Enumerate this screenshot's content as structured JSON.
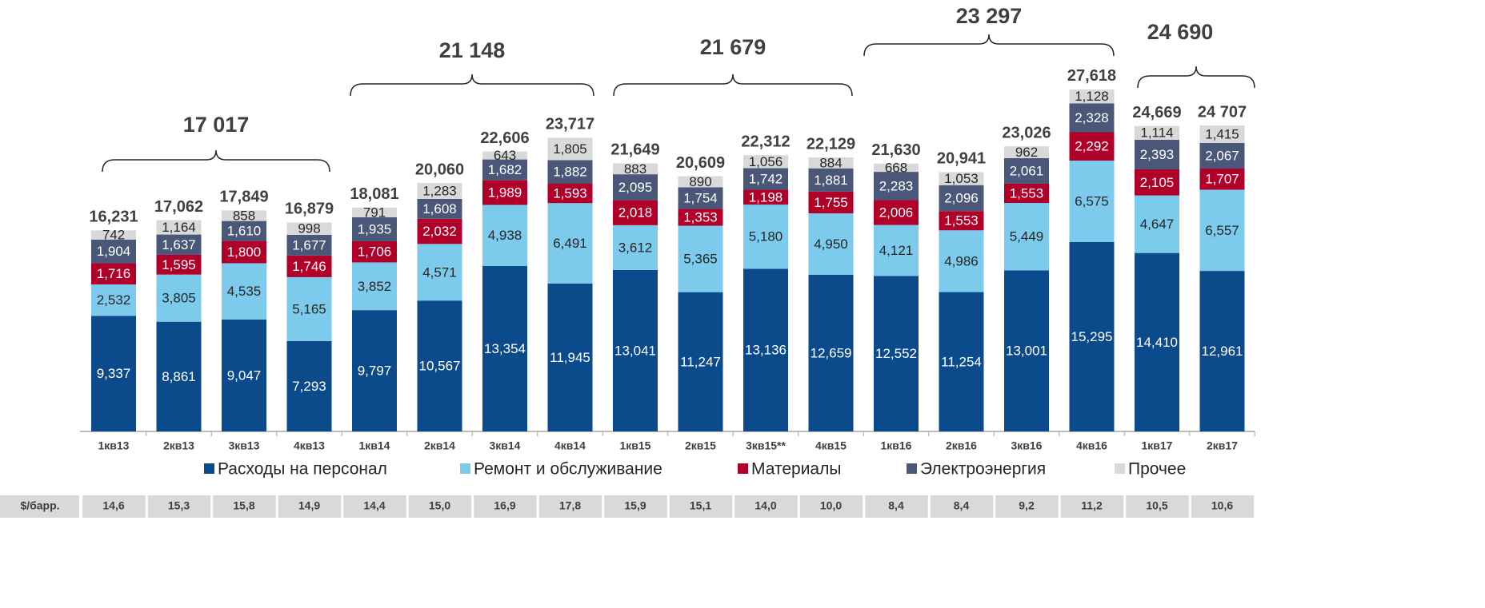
{
  "chart_data": {
    "type": "stacked_bar",
    "categories": [
      "1кв13",
      "2кв13",
      "3кв13",
      "4кв13",
      "1кв14",
      "2кв14",
      "3кв14",
      "4кв14",
      "1кв15",
      "2кв15",
      "3кв15**",
      "4кв15",
      "1кв16",
      "2кв16",
      "3кв16",
      "4кв16",
      "1кв17",
      "2кв17"
    ],
    "ylim": [
      0,
      28000
    ],
    "series": [
      {
        "name": "Расходы на персонал",
        "color": "#0b4a8b",
        "label_color": "#ffffff",
        "values": [
          9337,
          8861,
          9047,
          7293,
          9797,
          10567,
          13354,
          11945,
          13041,
          11247,
          13136,
          12659,
          12552,
          11254,
          13001,
          15295,
          14410,
          12961
        ],
        "value_labels": [
          "9,337",
          "8,861",
          "9,047",
          "7,293",
          "9,797",
          "10,567",
          "13,354",
          "11,945",
          "13,041",
          "11,247",
          "13,136",
          "12,659",
          "12,552",
          "11,254",
          "13,001",
          "15,295",
          "14,410",
          "12,961"
        ]
      },
      {
        "name": "Ремонт и обслуживание",
        "color": "#7ccbec",
        "label_color": "#262626",
        "values": [
          2532,
          3805,
          4535,
          5165,
          3852,
          4571,
          4938,
          6491,
          3612,
          5365,
          5180,
          4950,
          4121,
          4986,
          5449,
          6575,
          4647,
          6557
        ],
        "value_labels": [
          "2,532",
          "3,805",
          "4,535",
          "5,165",
          "3,852",
          "4,571",
          "4,938",
          "6,491",
          "3,612",
          "5,365",
          "5,180",
          "4,950",
          "4,121",
          "4,986",
          "5,449",
          "6,575",
          "4,647",
          "6,557"
        ]
      },
      {
        "name": "Материалы",
        "color": "#b0002a",
        "label_color": "#ffffff",
        "values": [
          1716,
          1595,
          1800,
          1746,
          1706,
          2032,
          1989,
          1593,
          2018,
          1353,
          1198,
          1755,
          2006,
          1553,
          1553,
          2292,
          2105,
          1707
        ],
        "value_labels": [
          "1,716",
          "1,595",
          "1,800",
          "1,746",
          "1,706",
          "2,032",
          "1,989",
          "1,593",
          "2,018",
          "1,353",
          "1,198",
          "1,755",
          "2,006",
          "1,553",
          "1,553",
          "2,292",
          "2,105",
          "1,707"
        ]
      },
      {
        "name": "Электроэнергия",
        "color": "#4a5778",
        "label_color": "#ffffff",
        "values": [
          1904,
          1637,
          1610,
          1677,
          1935,
          1608,
          1682,
          1882,
          2095,
          1754,
          1742,
          1881,
          2283,
          2096,
          2061,
          2328,
          2393,
          2067
        ],
        "value_labels": [
          "1,904",
          "1,637",
          "1,610",
          "1,677",
          "1,935",
          "1,608",
          "1,682",
          "1,882",
          "2,095",
          "1,754",
          "1,742",
          "1,881",
          "2,283",
          "2,096",
          "2,061",
          "2,328",
          "2,393",
          "2,067"
        ]
      },
      {
        "name": "Прочее",
        "color": "#d9d9d9",
        "label_color": "#262626",
        "values": [
          742,
          1164,
          858,
          998,
          791,
          1283,
          643,
          1805,
          883,
          890,
          1056,
          884,
          668,
          1053,
          962,
          1128,
          1114,
          1415
        ],
        "value_labels": [
          "742",
          "1,164",
          "858",
          "998",
          "791",
          "1,283",
          "643",
          "1,805",
          "883",
          "890",
          "1,056",
          "884",
          "668",
          "1,053",
          "962",
          "1,128",
          "1,114",
          "1,415"
        ]
      }
    ],
    "totals": [
      16231,
      17062,
      17849,
      16879,
      18081,
      20060,
      22606,
      23717,
      21649,
      20609,
      22312,
      22129,
      21630,
      20941,
      23026,
      27618,
      24669,
      24707
    ],
    "total_labels": [
      "16,231",
      "17,062",
      "17,849",
      "16,879",
      "18,081",
      "20,060",
      "22,606",
      "23,717",
      "21,649",
      "20,609",
      "22,312",
      "22,129",
      "21,630",
      "20,941",
      "23,026",
      "27,618",
      "24,669",
      "24 707"
    ],
    "annotations": [
      {
        "value": 17017,
        "label": "17 017"
      },
      {
        "value": 21148,
        "label": "21 148"
      },
      {
        "value": 21679,
        "label": "21 679"
      },
      {
        "value": 23297,
        "label": "23 297"
      },
      {
        "value": 24690,
        "label": "24 690"
      }
    ],
    "legend": "bottom"
  },
  "table": {
    "label": "$/барр.",
    "values": [
      "14,6",
      "15,3",
      "15,8",
      "14,9",
      "14,4",
      "15,0",
      "16,9",
      "17,8",
      "15,9",
      "15,1",
      "14,0",
      "10,0",
      "8,4",
      "8,4",
      "9,2",
      "11,2",
      "10,5",
      "10,6"
    ]
  }
}
